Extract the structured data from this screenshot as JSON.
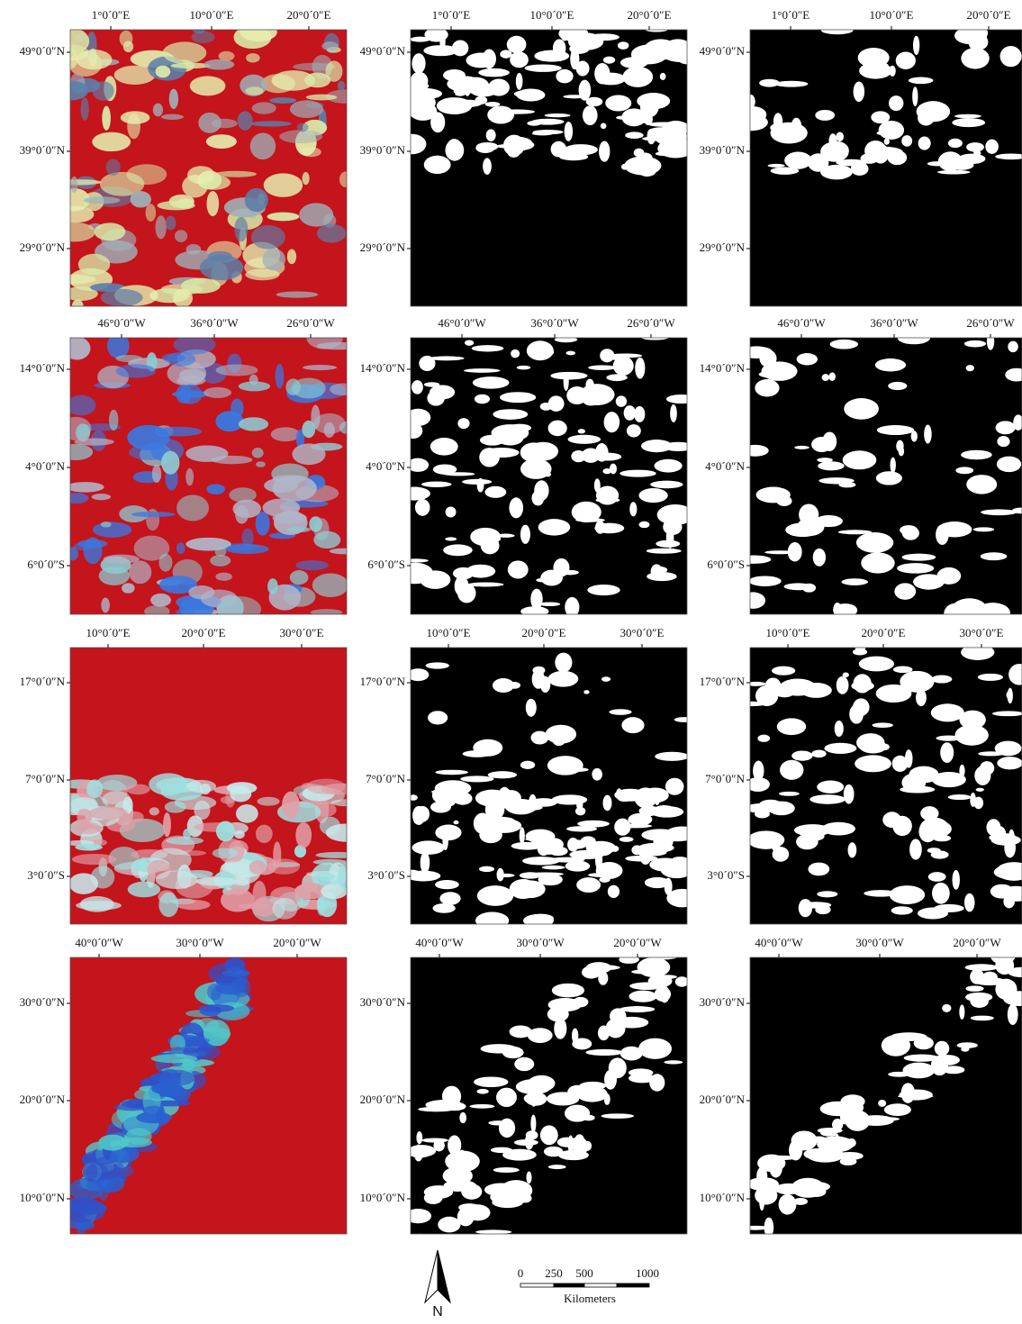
{
  "rows": [
    {
      "x_labels": [
        "1°0´0″E",
        "10°0´0″E",
        "20°0´0″E"
      ],
      "y_labels": [
        "49°0´0″N",
        "39°0´0″N",
        "29°0´0″N"
      ]
    },
    {
      "x_labels": [
        "46°0´0″W",
        "36°0´0″W",
        "26°0´0″W"
      ],
      "y_labels": [
        "14°0´0″N",
        "4°0´0″N",
        "6°0´0″S"
      ]
    },
    {
      "x_labels": [
        "10°0´0″E",
        "20°0´0″E",
        "30°0´0″E"
      ],
      "y_labels": [
        "17°0´0″N",
        "7°0´0″N",
        "3°0´0″S"
      ]
    },
    {
      "x_labels": [
        "40°0´0″W",
        "30°0´0″W",
        "20°0´0″W"
      ],
      "y_labels": [
        "30°0´0″N",
        "20°0´0″N",
        "10°0´0″N"
      ]
    }
  ],
  "north_arrow": "N",
  "scale_bar": {
    "ticks": [
      "0",
      "250",
      "500",
      "1000"
    ],
    "unit": "Kilometers"
  }
}
